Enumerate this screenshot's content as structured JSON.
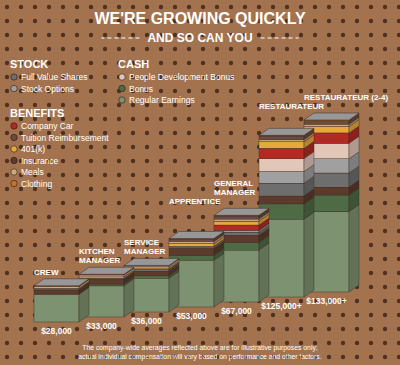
{
  "chart_data": {
    "type": "bar",
    "stacked": true,
    "title": "WE'RE GROWING QUICKLY",
    "subtitle": "AND SO CAN YOU",
    "categories": [
      "CREW",
      "KITCHEN MANAGER",
      "SERVICE MANAGER",
      "APPRENTICE",
      "GENERAL MANAGER",
      "RESTAURATEUR",
      "RESTAURATEUR (2-4)"
    ],
    "series": [
      {
        "name": "Full Value Shares",
        "group": "STOCK",
        "color": "#6e6e6e",
        "values": [
          1000,
          1000,
          1500,
          1000,
          2500,
          10000,
          11000
        ]
      },
      {
        "name": "Stock Options",
        "group": "STOCK",
        "color": "#a0a0a0",
        "values": [
          0,
          0,
          0,
          1000,
          1500,
          9000,
          11000
        ]
      },
      {
        "name": "People Development Bonus",
        "group": "CASH",
        "color": "#e2c6b8",
        "values": [
          0,
          0,
          0,
          0,
          0,
          10000,
          12000
        ]
      },
      {
        "name": "Bonus",
        "group": "CASH",
        "color": "#4f6b45",
        "values": [
          0,
          1500,
          2000,
          4000,
          6000,
          12000,
          13000
        ]
      },
      {
        "name": "Regular Earnings",
        "group": "CASH",
        "color": "#7c9270",
        "values": [
          21500,
          24000,
          26000,
          36000,
          40000,
          60000,
          62000
        ]
      },
      {
        "name": "Company Car",
        "group": "BENEFITS",
        "color": "#b32a25",
        "values": [
          0,
          0,
          0,
          0,
          4000,
          8000,
          8000
        ]
      },
      {
        "name": "Tuition Reimbursement",
        "group": "BENEFITS",
        "color": "#6b4a3f",
        "values": [
          0,
          0,
          0,
          2000,
          2500,
          3000,
          3000
        ]
      },
      {
        "name": "401(k)",
        "group": "BENEFITS",
        "color": "#e9a93a",
        "values": [
          500,
          1000,
          1000,
          2000,
          3000,
          5000,
          5000
        ]
      },
      {
        "name": "Insurance",
        "group": "BENEFITS",
        "color": "#5c3b2c",
        "values": [
          3000,
          3500,
          3500,
          5000,
          5500,
          6000,
          6000
        ]
      },
      {
        "name": "Meals",
        "group": "BENEFITS",
        "color": "#c9a982",
        "values": [
          1500,
          1500,
          1500,
          1500,
          1500,
          1500,
          1500
        ]
      },
      {
        "name": "Clothing",
        "group": "BENEFITS",
        "color": "#c7712e",
        "values": [
          500,
          500,
          500,
          500,
          500,
          500,
          500
        ]
      }
    ],
    "totals": [
      28000,
      33000,
      36000,
      53000,
      67000,
      125000,
      133000
    ],
    "total_labels": [
      "$28,000",
      "$33,000",
      "$36,000",
      "$53,000",
      "$67,000",
      "$125,000+",
      "$133,000+"
    ],
    "legend": "top-left",
    "notes": [
      "The company-wide averages reflected above are for illustrative purposes only;",
      "actual individual compensation will vary based on performance and other factors."
    ]
  }
}
